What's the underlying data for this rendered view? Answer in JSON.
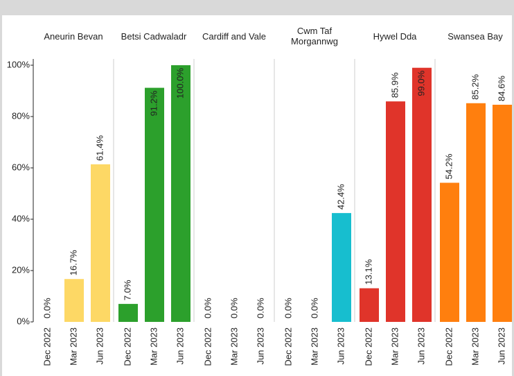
{
  "chart_data": [
    {
      "type": "bar",
      "title": "Aneurin Bevan",
      "categories": [
        "Dec 2022",
        "Mar 2023",
        "Jun 2023"
      ],
      "values": [
        0,
        16.7,
        61.4
      ],
      "value_labels": [
        "0.0%",
        "16.7%",
        "61.4%"
      ],
      "color": "#fdd865",
      "ylim": [
        0,
        100
      ],
      "yticks": [
        {
          "value": 0,
          "label": "0%"
        },
        {
          "value": 20,
          "label": "20%"
        },
        {
          "value": 40,
          "label": "40%"
        },
        {
          "value": 60,
          "label": "60%"
        },
        {
          "value": 80,
          "label": "80%"
        },
        {
          "value": 100,
          "label": "100%"
        }
      ]
    },
    {
      "type": "bar",
      "title": "Betsi Cadwaladr",
      "categories": [
        "Dec 2022",
        "Mar 2023",
        "Jun 2023"
      ],
      "values": [
        7.0,
        91.2,
        100.0
      ],
      "value_labels": [
        "7.0%",
        "91.2%",
        "100.0%"
      ],
      "color": "#2ca02c",
      "ylim": [
        0,
        100
      ]
    },
    {
      "type": "bar",
      "title": "Cardiff and Vale",
      "categories": [
        "Dec 2022",
        "Mar 2023",
        "Jun 2023"
      ],
      "values": [
        0,
        0,
        0
      ],
      "value_labels": [
        "0.0%",
        "0.0%",
        "0.0%"
      ],
      "ylim": [
        0,
        100
      ]
    },
    {
      "type": "bar",
      "title": "Cwm Taf Morgannwg",
      "categories": [
        "Dec 2022",
        "Mar 2023",
        "Jun 2023"
      ],
      "values": [
        0,
        0,
        42.4
      ],
      "value_labels": [
        "0.0%",
        "0.0%",
        "42.4%"
      ],
      "color": "#17becf",
      "ylim": [
        0,
        100
      ]
    },
    {
      "type": "bar",
      "title": "Hywel Dda",
      "categories": [
        "Dec 2022",
        "Mar 2023",
        "Jun 2023"
      ],
      "values": [
        13.1,
        85.9,
        99.0
      ],
      "value_labels": [
        "13.1%",
        "85.9%",
        "99.0%"
      ],
      "color": "#e0342a",
      "ylim": [
        0,
        100
      ]
    },
    {
      "type": "bar",
      "title": "Swansea Bay",
      "categories": [
        "Dec 2022",
        "Mar 2023",
        "Jun 2023"
      ],
      "values": [
        54.2,
        85.2,
        84.6
      ],
      "value_labels": [
        "54.2%",
        "85.2%",
        "84.6%"
      ],
      "color": "#ff7f0e",
      "ylim": [
        0,
        100
      ]
    }
  ]
}
